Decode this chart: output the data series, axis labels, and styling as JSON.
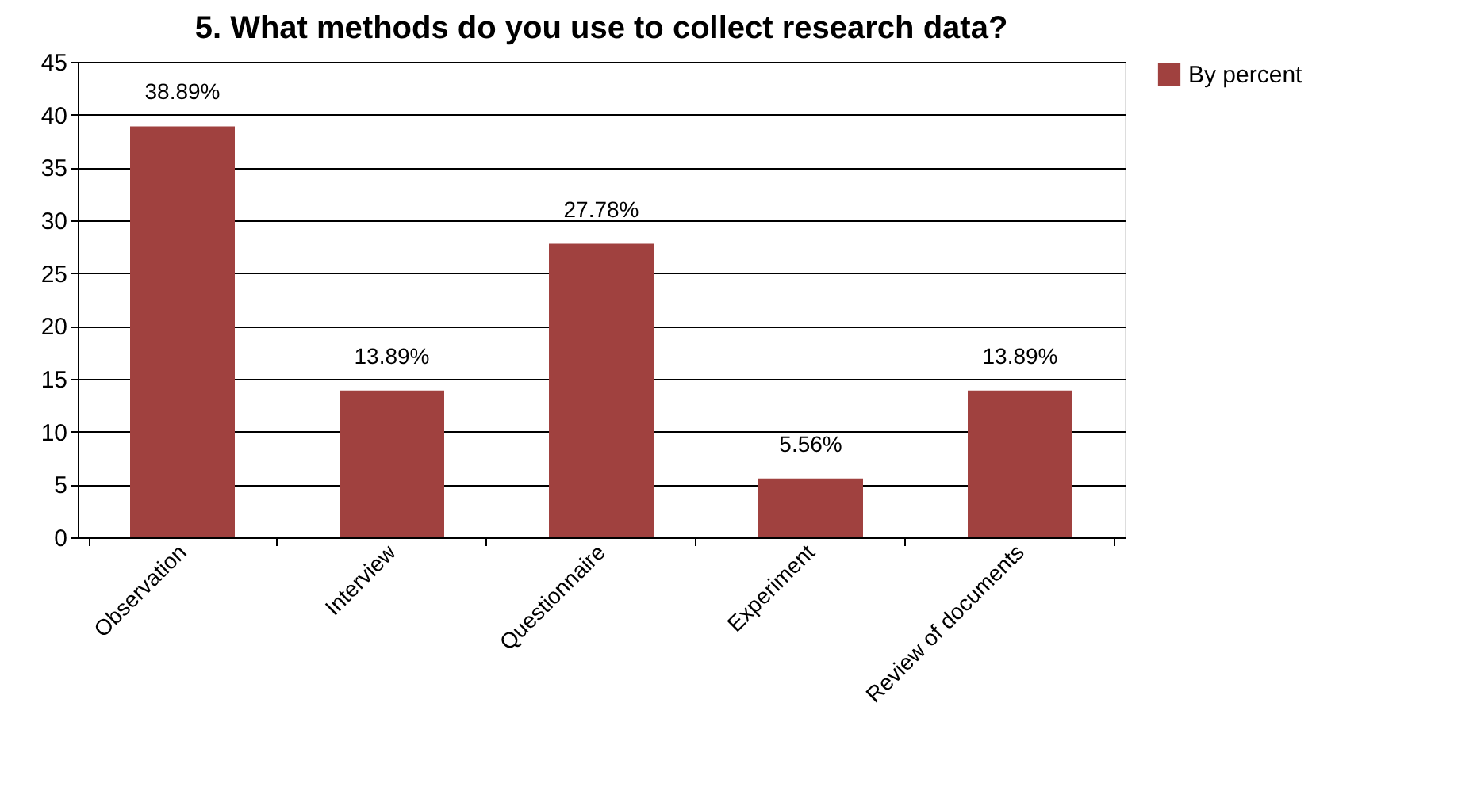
{
  "chart_data": {
    "type": "bar",
    "title": "5. What methods do you use to collect research data?",
    "categories": [
      "Observation",
      "Interview",
      "Questionnaire",
      "Experiment",
      "Review of documents"
    ],
    "series": [
      {
        "name": "By percent",
        "color": "#a0413f",
        "values": [
          38.89,
          13.89,
          27.78,
          5.56,
          13.89
        ]
      }
    ],
    "value_labels": [
      "38.89%",
      "13.89%",
      "27.78%",
      "5.56%",
      "13.89%"
    ],
    "ylim": [
      0,
      45
    ],
    "yticks": [
      0,
      5,
      10,
      15,
      20,
      25,
      30,
      35,
      40,
      45
    ],
    "grid": "y",
    "legend": "right"
  }
}
